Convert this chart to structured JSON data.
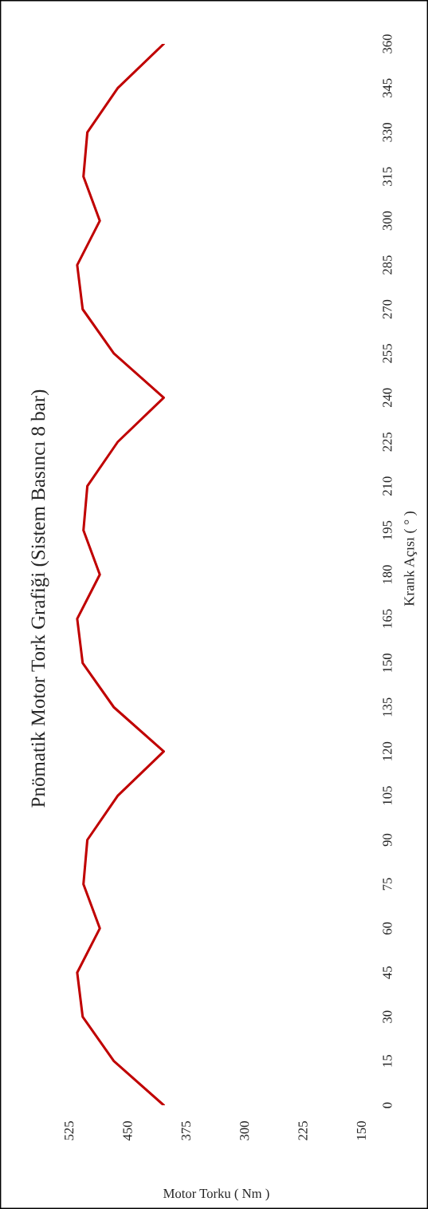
{
  "chart_data": {
    "type": "line",
    "orientation": "horizontal",
    "title": "Pnömatik Motor Tork Grafiği (Sistem Basıncı 8 bar)",
    "xlabel": "Motor Torku ( Nm )",
    "ylabel": "Krank Açısı ( ° )",
    "x": [
      0,
      15,
      30,
      45,
      60,
      75,
      90,
      105,
      120,
      135,
      150,
      165,
      180,
      195,
      210,
      225,
      240,
      255,
      270,
      285,
      300,
      315,
      330,
      345,
      360
    ],
    "series": [
      {
        "color": "#c00000",
        "values": [
          405,
          469,
          509,
          516,
          487,
          508,
          503,
          464,
          405,
          469,
          509,
          516,
          487,
          508,
          503,
          464,
          405,
          469,
          509,
          516,
          487,
          508,
          503,
          464,
          405
        ]
      }
    ],
    "ylim": [
      0,
      360
    ],
    "yticks": [
      0,
      15,
      30,
      45,
      60,
      75,
      90,
      105,
      120,
      135,
      150,
      165,
      180,
      195,
      210,
      225,
      240,
      255,
      270,
      285,
      300,
      315,
      330,
      345,
      360
    ],
    "xlim": [
      525,
      150
    ],
    "xticks": [
      150,
      225,
      300,
      375,
      450,
      525
    ],
    "grid": false
  }
}
